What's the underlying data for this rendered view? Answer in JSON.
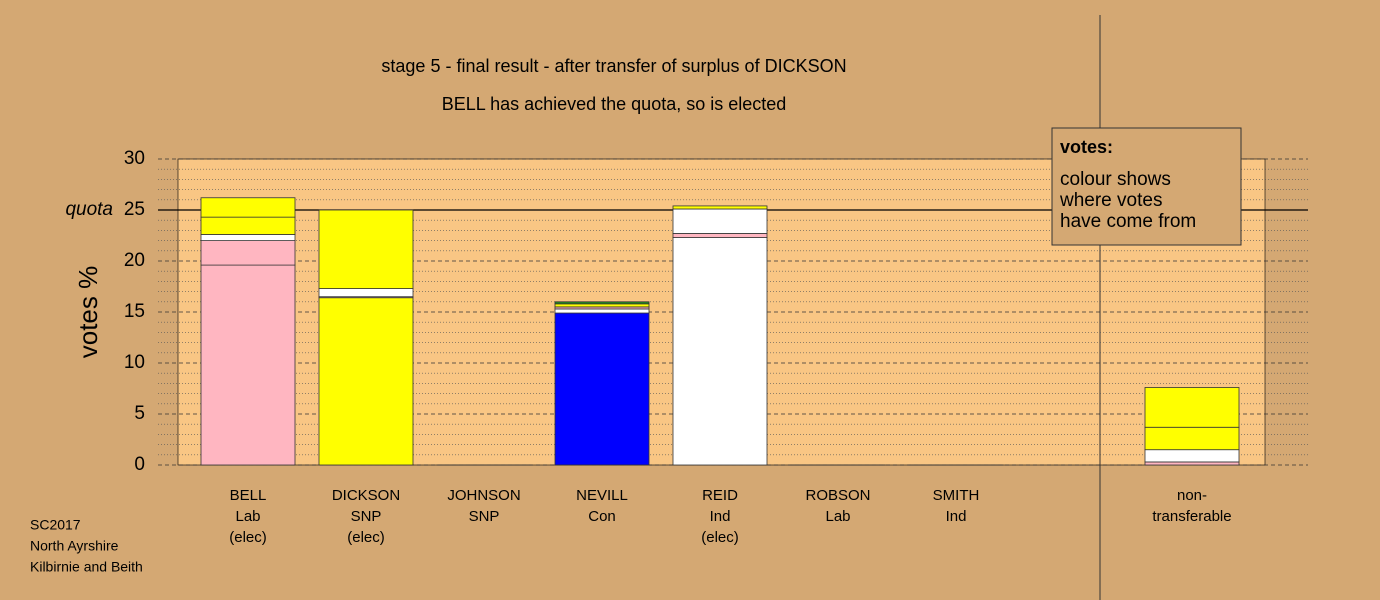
{
  "chart_data": {
    "type": "stacked-bar",
    "title": "stage 5 - final result - after transfer of surplus of DICKSON",
    "subtitle": "BELL has achieved the quota, so is elected",
    "y_label": "votes %",
    "ylim": [
      0,
      30
    ],
    "yticks": [
      0,
      5,
      10,
      15,
      20,
      25,
      30
    ],
    "quota": 25,
    "quota_label": "quota",
    "legend": {
      "title": "votes:",
      "lines": [
        "colour shows",
        "where votes",
        "have come from"
      ]
    },
    "footer": [
      "SC2017",
      "North Ayrshire",
      "Kilbirnie and Beith"
    ],
    "bars": [
      {
        "label": [
          "BELL",
          "Lab",
          "(elec)"
        ],
        "segments": [
          {
            "value": 19.6,
            "color": "#ffb6c1"
          },
          {
            "value": 2.4,
            "color": "#ffb6c1"
          },
          {
            "value": 0.6,
            "color": "#ffffff"
          },
          {
            "value": 1.7,
            "color": "#ffff00"
          },
          {
            "value": 1.9,
            "color": "#ffff00"
          }
        ]
      },
      {
        "label": [
          "DICKSON",
          "SNP",
          "(elec)"
        ],
        "segments": [
          {
            "value": 16.4,
            "color": "#ffff00"
          },
          {
            "value": 0.1,
            "color": "#ffb6c1"
          },
          {
            "value": 0.8,
            "color": "#ffffff"
          },
          {
            "value": 7.7,
            "color": "#ffff00"
          }
        ]
      },
      {
        "label": [
          "JOHNSON",
          "SNP"
        ],
        "segments": [
          {
            "value": 0,
            "color": "#ffff00"
          }
        ]
      },
      {
        "label": [
          "NEVILL",
          "Con"
        ],
        "segments": [
          {
            "value": 14.9,
            "color": "#0000ff"
          },
          {
            "value": 0.4,
            "color": "#ffffff"
          },
          {
            "value": 0.2,
            "color": "#ffb6c1"
          },
          {
            "value": 0.3,
            "color": "#ffff00"
          },
          {
            "value": 0.2,
            "color": "#228b22"
          }
        ]
      },
      {
        "label": [
          "REID",
          "Ind",
          "(elec)"
        ],
        "segments": [
          {
            "value": 22.3,
            "color": "#ffffff"
          },
          {
            "value": 0.4,
            "color": "#ffb6c1"
          },
          {
            "value": 2.4,
            "color": "#ffffff"
          },
          {
            "value": 0.3,
            "color": "#ffff00"
          }
        ]
      },
      {
        "label": [
          "ROBSON",
          "Lab"
        ],
        "segments": [
          {
            "value": 0,
            "color": "#ffb6c1"
          }
        ]
      },
      {
        "label": [
          "SMITH",
          "Ind"
        ],
        "segments": [
          {
            "value": 0,
            "color": "#ffffff"
          }
        ]
      },
      {
        "label": [
          "non-",
          "transferable"
        ],
        "segments": [
          {
            "value": 0.3,
            "color": "#ffb6c1"
          },
          {
            "value": 1.2,
            "color": "#ffffff"
          },
          {
            "value": 2.2,
            "color": "#ffff00"
          },
          {
            "value": 3.9,
            "color": "#ffff00"
          }
        ]
      }
    ]
  }
}
